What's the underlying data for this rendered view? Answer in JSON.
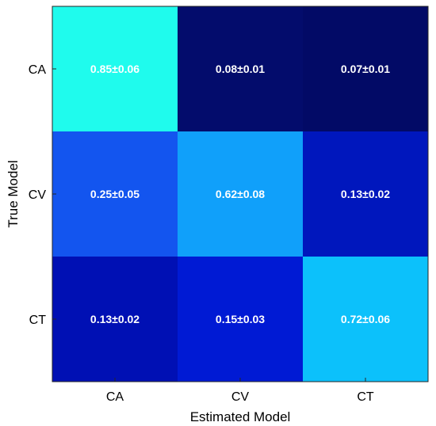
{
  "chart_data": {
    "type": "heatmap",
    "title": "",
    "xlabel": "Estimated Model",
    "ylabel": "True Model",
    "x_categories": [
      "CA",
      "CV",
      "CT"
    ],
    "y_categories": [
      "CA",
      "CV",
      "CT"
    ],
    "values": [
      [
        0.85,
        0.08,
        0.07
      ],
      [
        0.25,
        0.62,
        0.13
      ],
      [
        0.13,
        0.15,
        0.72
      ]
    ],
    "labels": [
      [
        "0.85±0.06",
        "0.08±0.01",
        "0.07±0.01"
      ],
      [
        "0.25±0.05",
        "0.62±0.08",
        "0.13±0.02"
      ],
      [
        "0.13±0.02",
        "0.15±0.03",
        "0.72±0.06"
      ]
    ],
    "colors": [
      [
        "#1ffbed",
        "#030c6c",
        "#020a66"
      ],
      [
        "#1355ef",
        "#10a0fa",
        "#0017bd"
      ],
      [
        "#0010b4",
        "#001ad4",
        "#0cc1fb"
      ]
    ],
    "colormap": "jet",
    "grid": false
  }
}
